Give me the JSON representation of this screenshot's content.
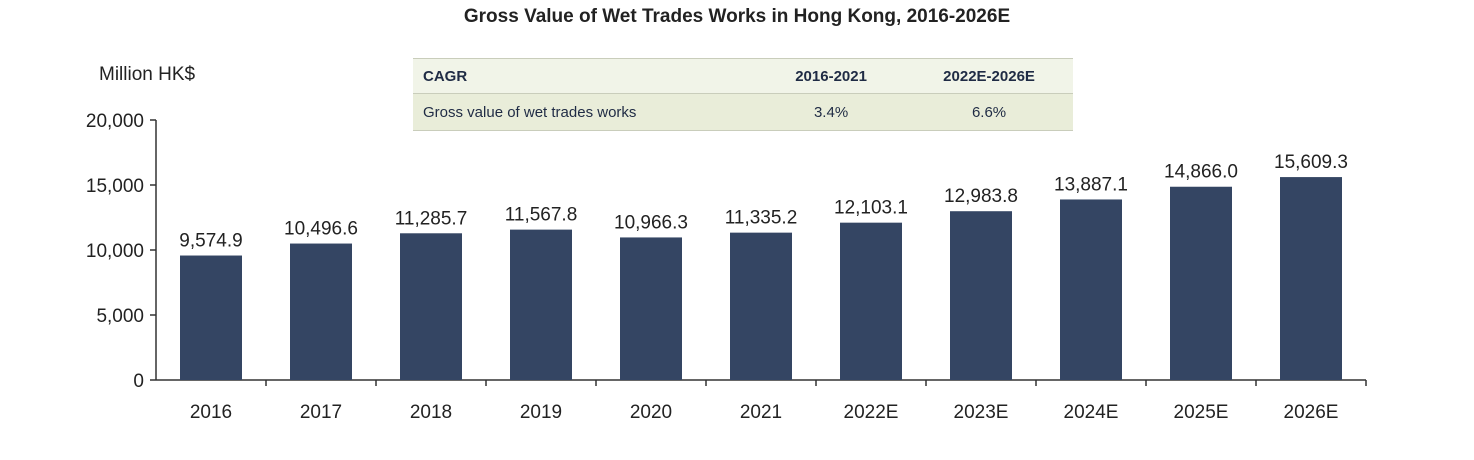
{
  "chart_data": {
    "type": "bar",
    "title": "Gross Value of Wet Trades Works in Hong Kong, 2016-2026E",
    "ylabel": "Million HK$",
    "xlabel": "",
    "categories": [
      "2016",
      "2017",
      "2018",
      "2019",
      "2020",
      "2021",
      "2022E",
      "2023E",
      "2024E",
      "2025E",
      "2026E"
    ],
    "values": [
      9574.9,
      10496.6,
      11285.7,
      11567.8,
      10966.3,
      11335.2,
      12103.1,
      12983.8,
      13887.1,
      14866.0,
      15609.3
    ],
    "value_labels": [
      "9,574.9",
      "10,496.6",
      "11,285.7",
      "11,567.8",
      "10,966.3",
      "11,335.2",
      "12,103.1",
      "12,983.8",
      "13,887.1",
      "14,866.0",
      "15,609.3"
    ],
    "ylim": [
      0,
      20000
    ],
    "yticks": [
      0,
      5000,
      10000,
      15000,
      20000
    ],
    "ytick_labels": [
      "0",
      "5,000",
      "10,000",
      "15,000",
      "20,000"
    ],
    "grid": false,
    "bar_color": "#344563",
    "cagr_table": {
      "headers": [
        "CAGR",
        "2016-2021",
        "2022E-2026E"
      ],
      "rows": [
        [
          "Gross value of wet trades works",
          "3.4%",
          "6.6%"
        ]
      ]
    }
  }
}
